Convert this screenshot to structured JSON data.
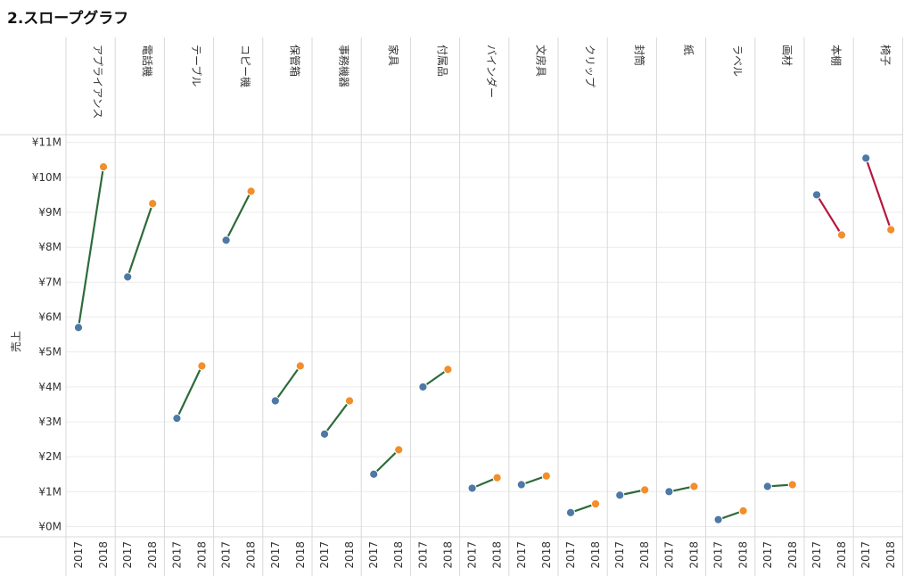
{
  "page": {
    "title": "2.スロープグラフ"
  },
  "colors": {
    "year_2017": "#4e79a7",
    "year_2018": "#f28e2b",
    "increase": "#2e6b3a",
    "decrease": "#b5173e",
    "gridline": "#ececec",
    "divider": "#d9d9d9"
  },
  "chart_data": {
    "type": "line",
    "subtype": "slopegraph",
    "title": "",
    "ylabel": "売上",
    "xlabel": "",
    "ylim": [
      0,
      11000000
    ],
    "grid": true,
    "y_ticks": [
      {
        "value": 11000000,
        "label": "¥11M"
      },
      {
        "value": 10000000,
        "label": "¥10M"
      },
      {
        "value": 9000000,
        "label": "¥9M"
      },
      {
        "value": 8000000,
        "label": "¥8M"
      },
      {
        "value": 7000000,
        "label": "¥7M"
      },
      {
        "value": 6000000,
        "label": "¥6M"
      },
      {
        "value": 5000000,
        "label": "¥5M"
      },
      {
        "value": 4000000,
        "label": "¥4M"
      },
      {
        "value": 3000000,
        "label": "¥3M"
      },
      {
        "value": 2000000,
        "label": "¥2M"
      },
      {
        "value": 1000000,
        "label": "¥1M"
      },
      {
        "value": 0,
        "label": "¥0M"
      }
    ],
    "years": [
      "2017",
      "2018"
    ],
    "categories": [
      {
        "name": "アプライアンス",
        "values": [
          5700000,
          10300000
        ]
      },
      {
        "name": "電話機",
        "values": [
          7150000,
          9250000
        ]
      },
      {
        "name": "テーブル",
        "values": [
          3100000,
          4600000
        ]
      },
      {
        "name": "コピー機",
        "values": [
          8200000,
          9600000
        ]
      },
      {
        "name": "保管箱",
        "values": [
          3600000,
          4600000
        ]
      },
      {
        "name": "事務機器",
        "values": [
          2650000,
          3600000
        ]
      },
      {
        "name": "家具",
        "values": [
          1500000,
          2200000
        ]
      },
      {
        "name": "付属品",
        "values": [
          4000000,
          4500000
        ]
      },
      {
        "name": "バインダー",
        "values": [
          1100000,
          1400000
        ]
      },
      {
        "name": "文房具",
        "values": [
          1200000,
          1450000
        ]
      },
      {
        "name": "クリップ",
        "values": [
          400000,
          650000
        ]
      },
      {
        "name": "封筒",
        "values": [
          900000,
          1050000
        ]
      },
      {
        "name": "紙",
        "values": [
          1000000,
          1150000
        ]
      },
      {
        "name": "ラベル",
        "values": [
          200000,
          450000
        ]
      },
      {
        "name": "画材",
        "values": [
          1150000,
          1200000
        ]
      },
      {
        "name": "本棚",
        "values": [
          9500000,
          8350000
        ]
      },
      {
        "name": "椅子",
        "values": [
          10550000,
          8500000
        ]
      }
    ]
  }
}
